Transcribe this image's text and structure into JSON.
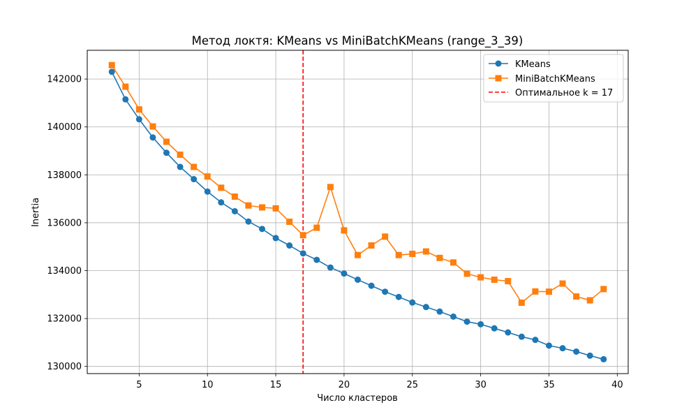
{
  "chart_data": {
    "type": "line",
    "title": "Метод локтя: KMeans vs MiniBatchKMeans (range_3_39)",
    "xlabel": "Число кластеров",
    "ylabel": "Inertia",
    "xlim": [
      1.2,
      40.8
    ],
    "ylim": [
      129700,
      143200
    ],
    "xticks": [
      5,
      10,
      15,
      20,
      25,
      30,
      35,
      40
    ],
    "yticks": [
      130000,
      132000,
      134000,
      136000,
      138000,
      140000,
      142000
    ],
    "grid": true,
    "legend_position": "top-right",
    "x": [
      3,
      4,
      5,
      6,
      7,
      8,
      9,
      10,
      11,
      12,
      13,
      14,
      15,
      16,
      17,
      18,
      19,
      20,
      21,
      22,
      23,
      24,
      25,
      26,
      27,
      28,
      29,
      30,
      31,
      32,
      33,
      34,
      35,
      36,
      37,
      38,
      39
    ],
    "series": [
      {
        "name": "KMeans",
        "color": "#1f77b4",
        "marker": "circle",
        "values": [
          142300,
          141150,
          140320,
          139560,
          138920,
          138330,
          137820,
          137300,
          136850,
          136480,
          136050,
          135740,
          135360,
          135050,
          134720,
          134450,
          134130,
          133880,
          133620,
          133370,
          133120,
          132900,
          132670,
          132480,
          132290,
          132080,
          131870,
          131760,
          131590,
          131420,
          131240,
          131110,
          130870,
          130760,
          130620,
          130450,
          130300
        ]
      },
      {
        "name": "MiniBatchKMeans",
        "color": "#ff7f0e",
        "marker": "square",
        "values": [
          142580,
          141680,
          140730,
          140020,
          139380,
          138840,
          138330,
          137930,
          137460,
          137090,
          136720,
          136640,
          136600,
          136040,
          135480,
          135790,
          137490,
          135680,
          134650,
          135050,
          135420,
          134650,
          134700,
          134800,
          134530,
          134340,
          133870,
          133720,
          133620,
          133560,
          132660,
          133130,
          133120,
          133460,
          132920,
          132760,
          133230
        ]
      }
    ],
    "vline": {
      "x": 17,
      "label": "Оптимальное k = 17",
      "color": "#ff0000",
      "style": "dashed"
    }
  }
}
